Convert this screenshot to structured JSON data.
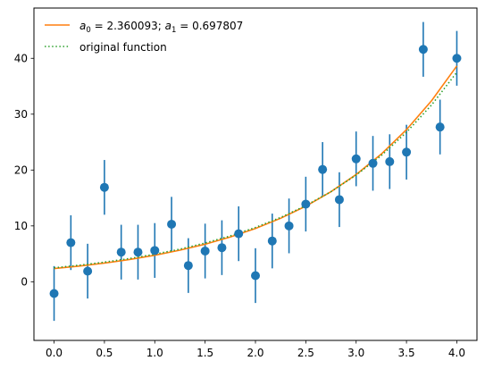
{
  "chart_data": {
    "type": "scatter",
    "title": "",
    "xlabel": "",
    "ylabel": "",
    "xlim": [
      -0.2,
      4.2
    ],
    "ylim": [
      -10.5,
      49
    ],
    "grid": false,
    "legend_position": "top-left",
    "x_ticks": [
      "0.0",
      "0.5",
      "1.0",
      "1.5",
      "2.0",
      "2.5",
      "3.0",
      "3.5",
      "4.0"
    ],
    "y_ticks": [
      "0",
      "10",
      "20",
      "30",
      "40"
    ],
    "series": [
      {
        "kind": "errorbar",
        "color": "#1f77b4",
        "error": 4.9,
        "x": [
          0.0,
          0.1667,
          0.3333,
          0.5,
          0.6667,
          0.8333,
          1.0,
          1.1667,
          1.3333,
          1.5,
          1.6667,
          1.8333,
          2.0,
          2.1667,
          2.3333,
          2.5,
          2.6667,
          2.8333,
          3.0,
          3.1667,
          3.3333,
          3.5,
          3.6667,
          3.8333,
          4.0
        ],
        "y": [
          -2.1,
          7.0,
          1.9,
          16.9,
          5.3,
          5.3,
          5.6,
          10.3,
          2.9,
          5.5,
          6.1,
          8.6,
          1.1,
          7.3,
          10.0,
          13.9,
          20.1,
          14.7,
          22.0,
          21.2,
          21.5,
          23.2,
          41.6,
          27.7,
          40.0
        ]
      },
      {
        "name_prefix": "a0 = ",
        "name_a0": "2.360093",
        "name_sep": "; ",
        "name_a1_prefix": "a1 = ",
        "name_a1": "0.697807",
        "kind": "line",
        "color": "#ff7f0e",
        "style": "solid",
        "x": [
          0,
          0.25,
          0.5,
          0.75,
          1.0,
          1.25,
          1.5,
          1.75,
          2.0,
          2.25,
          2.5,
          2.75,
          3.0,
          3.25,
          3.5,
          3.75,
          4.0
        ],
        "y": [
          2.36,
          2.8,
          3.34,
          3.98,
          4.74,
          5.65,
          6.72,
          8.01,
          9.54,
          11.36,
          13.53,
          16.12,
          19.2,
          22.86,
          27.23,
          32.43,
          38.63
        ]
      },
      {
        "name": "original function",
        "kind": "line",
        "color": "#2ca02c",
        "style": "dotted",
        "x": [
          0,
          0.25,
          0.5,
          0.75,
          1.0,
          1.25,
          1.5,
          1.75,
          2.0,
          2.25,
          2.5,
          2.75,
          3.0,
          3.25,
          3.5,
          3.75,
          4.0
        ],
        "y": [
          2.5,
          2.96,
          3.51,
          4.16,
          4.93,
          5.84,
          6.93,
          8.21,
          9.72,
          11.51,
          13.63,
          16.13,
          19.1,
          22.6,
          26.76,
          31.67,
          37.49
        ]
      }
    ]
  }
}
